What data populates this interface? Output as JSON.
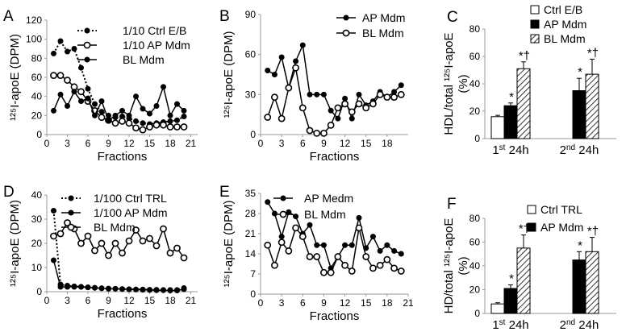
{
  "panels": [
    {
      "letter": "A"
    },
    {
      "letter": "B"
    },
    {
      "letter": "C"
    },
    {
      "letter": "D"
    },
    {
      "letter": "E"
    },
    {
      "letter": "F"
    }
  ],
  "chart_data": [
    {
      "panel": "A",
      "type": "line",
      "xlabel": "Fractions",
      "ylabel": "¹²⁵I-apoE (DPM)",
      "xlim": [
        0,
        22
      ],
      "ylim": [
        0,
        120
      ],
      "xticks": [
        0,
        3,
        6,
        9,
        12,
        15,
        18,
        21
      ],
      "yticks": [
        0,
        20,
        40,
        60,
        80,
        100,
        120
      ],
      "legend_position": "top-right",
      "series": [
        {
          "name": "1/10 Ctrl E/B",
          "marker": "dot",
          "line": "dotted",
          "x": [
            1,
            2,
            3,
            4,
            5,
            6,
            7,
            8,
            9,
            10,
            11,
            12,
            13,
            14,
            15,
            16,
            17,
            18,
            19,
            20
          ],
          "y": [
            85,
            98,
            87,
            90,
            70,
            48,
            32,
            24,
            20,
            18,
            19,
            17,
            14,
            12,
            11,
            12,
            13,
            14,
            15,
            19
          ]
        },
        {
          "name": "1/10 AP Mdm",
          "marker": "open-circle",
          "line": "solid",
          "x": [
            1,
            2,
            3,
            4,
            5,
            6,
            7,
            8,
            9,
            10,
            11,
            12,
            13,
            14,
            15,
            16,
            17,
            18,
            19,
            20
          ],
          "y": [
            62,
            62,
            57,
            50,
            45,
            35,
            25,
            18,
            15,
            12,
            14,
            12,
            7,
            5,
            8,
            10,
            10,
            8,
            8,
            8
          ]
        },
        {
          "name": "BL Mdm",
          "marker": "dot",
          "line": "solid",
          "x": [
            1,
            2,
            3,
            4,
            5,
            6,
            7,
            8,
            9,
            10,
            11,
            12,
            13,
            14,
            15,
            16,
            17,
            18,
            19,
            20
          ],
          "y": [
            25,
            42,
            30,
            45,
            35,
            38,
            20,
            35,
            15,
            20,
            25,
            20,
            40,
            27,
            22,
            30,
            50,
            20,
            32,
            25
          ]
        }
      ]
    },
    {
      "panel": "B",
      "type": "line",
      "xlabel": "Fractions",
      "ylabel": "¹²⁵I-apoE (DPM)",
      "xlim": [
        0,
        21
      ],
      "ylim": [
        0,
        90
      ],
      "xticks": [
        0,
        3,
        6,
        9,
        12,
        15,
        18
      ],
      "yticks": [
        0,
        30,
        60,
        90
      ],
      "legend_position": "top-right",
      "series": [
        {
          "name": "AP Mdm",
          "marker": "dot",
          "line": "solid",
          "x": [
            1,
            2,
            3,
            4,
            5,
            6,
            7,
            8,
            9,
            10,
            11,
            12,
            13,
            14,
            15,
            16,
            17,
            18,
            19,
            20
          ],
          "y": [
            48,
            45,
            58,
            35,
            55,
            67,
            30,
            30,
            30,
            18,
            12,
            27,
            12,
            30,
            22,
            25,
            32,
            28,
            32,
            37
          ]
        },
        {
          "name": "BL Mdm",
          "marker": "open-circle",
          "line": "solid",
          "x": [
            1,
            2,
            3,
            4,
            5,
            6,
            7,
            8,
            9,
            10,
            11,
            12,
            13,
            14,
            15,
            16,
            17,
            18,
            19,
            20
          ],
          "y": [
            13,
            28,
            12,
            35,
            50,
            20,
            3,
            1,
            1,
            7,
            20,
            23,
            17,
            23,
            20,
            23,
            30,
            28,
            28,
            30
          ]
        }
      ]
    },
    {
      "panel": "C",
      "type": "bar",
      "xlabel": "",
      "ylabel": "HDL/total ¹²⁵I-apoE (%)",
      "ylim": [
        0,
        80
      ],
      "yticks": [
        0,
        20,
        40,
        60,
        80
      ],
      "categories": [
        "1st 24h",
        "2nd 24h"
      ],
      "legend_position": "top-right",
      "series": [
        {
          "name": "Ctrl E/B",
          "fill": "white",
          "values": [
            16,
            null
          ],
          "errors": [
            1,
            null
          ],
          "annotations": [
            "",
            ""
          ]
        },
        {
          "name": "AP Mdm",
          "fill": "black",
          "values": [
            24,
            35
          ],
          "errors": [
            2,
            9
          ],
          "annotations": [
            "*",
            "*"
          ]
        },
        {
          "name": "BL Mdm",
          "fill": "hatched",
          "values": [
            51,
            47
          ],
          "errors": [
            5,
            11
          ],
          "annotations": [
            "*†",
            "*†"
          ]
        }
      ]
    },
    {
      "panel": "D",
      "type": "line",
      "xlabel": "Fractions",
      "ylabel": "¹²⁵I-apoE (DPM)",
      "xlim": [
        0,
        22
      ],
      "ylim": [
        0,
        40
      ],
      "xticks": [
        0,
        3,
        6,
        9,
        12,
        15,
        18,
        21
      ],
      "yticks": [
        0,
        10,
        20,
        30,
        40
      ],
      "legend_position": "top-right",
      "series": [
        {
          "name": "1/100 Ctrl TRL",
          "marker": "dot",
          "line": "dotted",
          "x": [
            1,
            2,
            3,
            4,
            5,
            6,
            7,
            8,
            9,
            10,
            11,
            12,
            13,
            14,
            15,
            16,
            17,
            18,
            19,
            20
          ],
          "y": [
            33.5,
            3,
            2.5,
            2.2,
            2,
            1.8,
            1.6,
            1.4,
            1.3,
            1.2,
            1.1,
            1,
            0.9,
            0.9,
            0.8,
            0.8,
            0.7,
            0.7,
            0.7,
            1.5
          ]
        },
        {
          "name": "1/100 AP Mdm",
          "marker": "dot",
          "line": "solid",
          "x": [
            1,
            2,
            3,
            4,
            5,
            6,
            7,
            8,
            9,
            10,
            11,
            12,
            13,
            14,
            15,
            16,
            17,
            18,
            19,
            20
          ],
          "y": [
            13,
            2,
            2,
            2,
            2,
            1.8,
            1.6,
            1.4,
            1.2,
            1.2,
            1.1,
            1,
            0.9,
            0.8,
            0.7,
            0.6,
            0.6,
            0.5,
            0.5,
            1
          ]
        },
        {
          "name": "BL Mdm",
          "marker": "open-circle",
          "line": "solid",
          "x": [
            1,
            2,
            3,
            4,
            5,
            6,
            7,
            8,
            9,
            10,
            11,
            12,
            13,
            14,
            15,
            16,
            17,
            18,
            19,
            20
          ],
          "y": [
            23,
            24,
            28.5,
            26,
            20,
            23,
            17,
            20,
            15,
            20,
            16,
            21,
            25.5,
            21,
            22,
            19,
            26,
            16,
            18,
            14
          ]
        }
      ]
    },
    {
      "panel": "E",
      "type": "line",
      "xlabel": "Fractions",
      "ylabel": "¹²⁵I-apoE (DPM)",
      "xlim": [
        0,
        21
      ],
      "ylim": [
        0,
        35
      ],
      "xticks": [
        0,
        3,
        6,
        9,
        12,
        15,
        18,
        21
      ],
      "yticks": [
        0,
        7,
        14,
        21,
        28,
        35
      ],
      "legend_position": "top-right",
      "series": [
        {
          "name": "AP Medm",
          "marker": "dot",
          "line": "solid",
          "x": [
            1,
            2,
            3,
            4,
            5,
            6,
            7,
            8,
            9,
            10,
            11,
            12,
            13,
            14,
            15,
            16,
            17,
            18,
            19,
            20
          ],
          "y": [
            32,
            28,
            20,
            28.5,
            27,
            21,
            24,
            17,
            17,
            9,
            13,
            17,
            17,
            26.5,
            16,
            20,
            15,
            17,
            15,
            14
          ]
        },
        {
          "name": "BL Mdm",
          "marker": "open-circle",
          "line": "solid",
          "x": [
            1,
            2,
            3,
            4,
            5,
            6,
            7,
            8,
            9,
            10,
            11,
            12,
            13,
            14,
            15,
            16,
            17,
            18,
            19,
            20
          ],
          "y": [
            17,
            10,
            18,
            15,
            23,
            20,
            13,
            13,
            7.5,
            7.5,
            13,
            10,
            8,
            23,
            13,
            9,
            10,
            12,
            9,
            8
          ]
        }
      ]
    },
    {
      "panel": "F",
      "type": "bar",
      "xlabel": "",
      "ylabel": "HD/total ¹²⁵I-apoE (%)",
      "ylim": [
        0,
        80
      ],
      "yticks": [
        0,
        20,
        40,
        60,
        80
      ],
      "categories": [
        "1st 24h",
        "2nd 24h"
      ],
      "legend_position": "top-right",
      "series": [
        {
          "name": "Ctrl TRL",
          "fill": "white",
          "values": [
            8,
            null
          ],
          "errors": [
            1,
            null
          ],
          "annotations": [
            "",
            ""
          ]
        },
        {
          "name": "AP Mdm",
          "fill": "black",
          "values": [
            21,
            45
          ],
          "errors": [
            3,
            7
          ],
          "annotations": [
            "*",
            "*"
          ]
        },
        {
          "name": "",
          "fill": "hatched",
          "values": [
            55,
            52
          ],
          "errors": [
            11,
            12
          ],
          "annotations": [
            "*†",
            "*†"
          ]
        }
      ]
    }
  ]
}
